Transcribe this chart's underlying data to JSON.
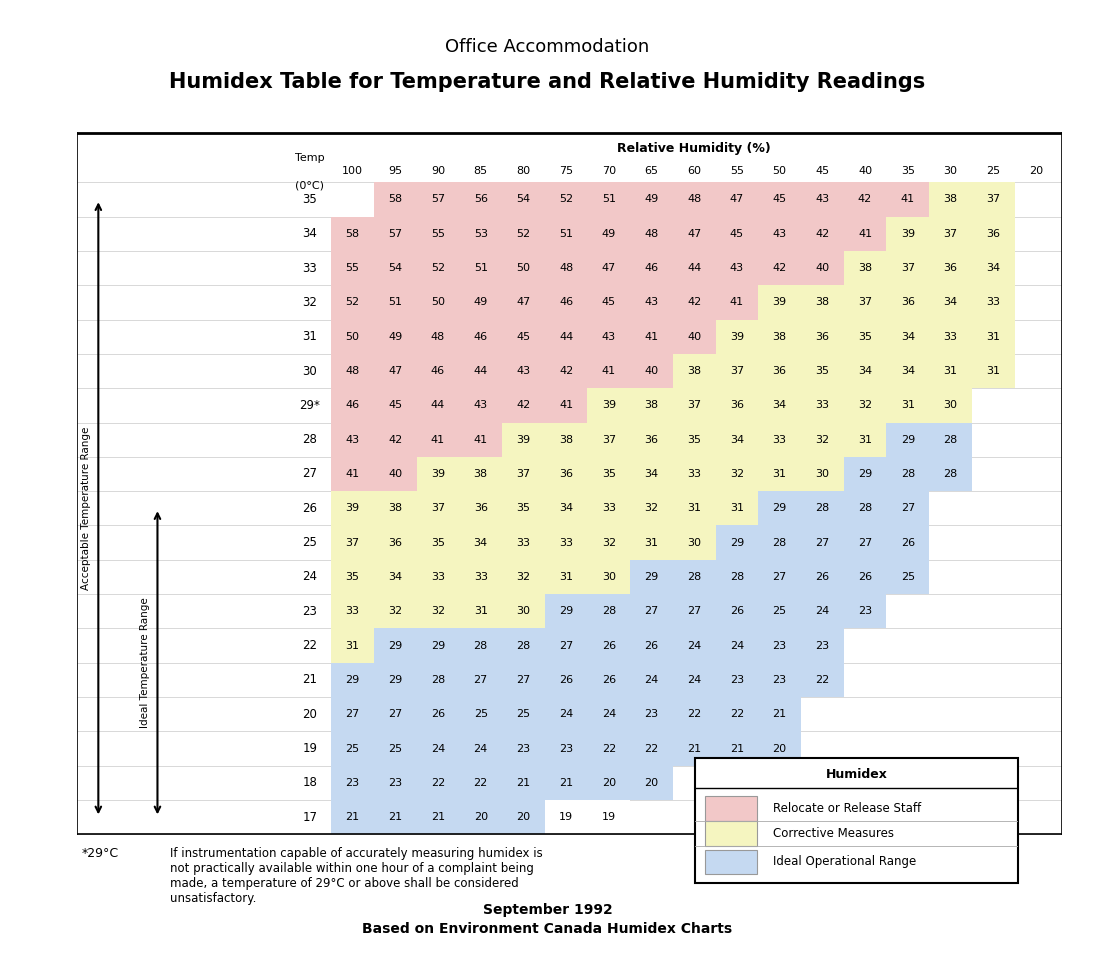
{
  "title1": "Office Accommodation",
  "title2": "Humidex Table for Temperature and Relative Humidity Readings",
  "rh_label": "Relative Humidity (%)",
  "rh_values": [
    100,
    95,
    90,
    85,
    80,
    75,
    70,
    65,
    60,
    55,
    50,
    45,
    40,
    35,
    30,
    25,
    20
  ],
  "temperatures": [
    35,
    34,
    33,
    32,
    31,
    30,
    "29*",
    28,
    27,
    26,
    25,
    24,
    23,
    22,
    21,
    20,
    19,
    18,
    17
  ],
  "humidex_data": {
    "35": [
      null,
      58,
      57,
      56,
      54,
      52,
      51,
      49,
      48,
      47,
      45,
      43,
      42,
      41,
      38,
      37,
      null
    ],
    "34": [
      58,
      57,
      55,
      53,
      52,
      51,
      49,
      48,
      47,
      45,
      43,
      42,
      41,
      39,
      37,
      36,
      null
    ],
    "33": [
      55,
      54,
      52,
      51,
      50,
      48,
      47,
      46,
      44,
      43,
      42,
      40,
      38,
      37,
      36,
      34,
      null
    ],
    "32": [
      52,
      51,
      50,
      49,
      47,
      46,
      45,
      43,
      42,
      41,
      39,
      38,
      37,
      36,
      34,
      33,
      null
    ],
    "31": [
      50,
      49,
      48,
      46,
      45,
      44,
      43,
      41,
      40,
      39,
      38,
      36,
      35,
      34,
      33,
      31,
      null
    ],
    "30": [
      48,
      47,
      46,
      44,
      43,
      42,
      41,
      40,
      38,
      37,
      36,
      35,
      34,
      34,
      31,
      31,
      null
    ],
    "29*": [
      46,
      45,
      44,
      43,
      42,
      41,
      39,
      38,
      37,
      36,
      34,
      33,
      32,
      31,
      30,
      null,
      null
    ],
    "28": [
      43,
      42,
      41,
      41,
      39,
      38,
      37,
      36,
      35,
      34,
      33,
      32,
      31,
      29,
      28,
      null,
      null
    ],
    "27": [
      41,
      40,
      39,
      38,
      37,
      36,
      35,
      34,
      33,
      32,
      31,
      30,
      29,
      28,
      28,
      null,
      null
    ],
    "26": [
      39,
      38,
      37,
      36,
      35,
      34,
      33,
      32,
      31,
      31,
      29,
      28,
      28,
      27,
      null,
      null,
      null
    ],
    "25": [
      37,
      36,
      35,
      34,
      33,
      33,
      32,
      31,
      30,
      29,
      28,
      27,
      27,
      26,
      null,
      null,
      null
    ],
    "24": [
      35,
      34,
      33,
      33,
      32,
      31,
      30,
      29,
      28,
      28,
      27,
      26,
      26,
      25,
      null,
      null,
      null
    ],
    "23": [
      33,
      32,
      32,
      31,
      30,
      29,
      28,
      27,
      27,
      26,
      25,
      24,
      23,
      null,
      null,
      null,
      null
    ],
    "22": [
      31,
      29,
      29,
      28,
      28,
      27,
      26,
      26,
      24,
      24,
      23,
      23,
      null,
      null,
      null,
      null,
      null
    ],
    "21": [
      29,
      29,
      28,
      27,
      27,
      26,
      26,
      24,
      24,
      23,
      23,
      22,
      null,
      null,
      null,
      null,
      null
    ],
    "20": [
      27,
      27,
      26,
      25,
      25,
      24,
      24,
      23,
      22,
      22,
      21,
      null,
      null,
      null,
      null,
      null,
      null
    ],
    "19": [
      25,
      25,
      24,
      24,
      23,
      23,
      22,
      22,
      21,
      21,
      20,
      null,
      null,
      null,
      null,
      null,
      null
    ],
    "18": [
      23,
      23,
      22,
      22,
      21,
      21,
      20,
      20,
      null,
      null,
      null,
      null,
      null,
      null,
      null,
      null,
      null
    ],
    "17": [
      21,
      21,
      21,
      20,
      20,
      19,
      19,
      null,
      null,
      null,
      null,
      null,
      null,
      null,
      null,
      null,
      null
    ]
  },
  "color_pink": "#f2c8c8",
  "color_yellow": "#f5f5c0",
  "color_blue": "#c5d9f1",
  "color_white": "#ffffff",
  "footnote_bold": "*29°C",
  "footnote_text": "If instrumentation capable of accurately measuring humidex is\nnot practically available within one hour of a complaint being\nmade, a temperature of 29°C or above shall be considered\nunsatisfactory.",
  "legend_title": "Humidex",
  "legend_items": [
    "Relocate or Release Staff",
    "Corrective Measures",
    "Ideal Operational Range"
  ],
  "legend_colors": [
    "#f2c8c8",
    "#f5f5c0",
    "#c5d9f1"
  ],
  "footer1": "September 1992",
  "footer2": "Based on Environment Canada Humidex Charts",
  "acceptable_label": "Acceptable Temperature Range",
  "ideal_label": "Ideal Temperature Range"
}
